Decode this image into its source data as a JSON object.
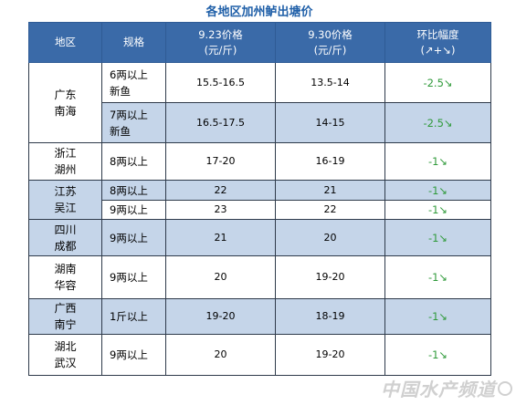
{
  "title": "各地区加州鲈出塘价",
  "headers": {
    "region": "地区",
    "spec": "规格",
    "price1_line1": "9.23价格",
    "price1_line2": "(元/斤)",
    "price2_line1": "9.30价格",
    "price2_line2": "(元/斤)",
    "change_line1": "环比幅度",
    "change_line2": "(↗+↘)"
  },
  "regions": [
    {
      "name": "广东\n南海",
      "rows": [
        {
          "spec": "6两以上\n新鱼",
          "p1": "15.5-16.5",
          "p2": "13.5-14",
          "change": "-2.5↘"
        },
        {
          "spec": "7两以上\n新鱼",
          "p1": "16.5-17.5",
          "p2": "14-15",
          "change": "-2.5↘"
        }
      ]
    },
    {
      "name": "浙江\n湖州",
      "rows": [
        {
          "spec": "8两以上",
          "p1": "17-20",
          "p2": "16-19",
          "change": "-1↘"
        }
      ]
    },
    {
      "name": "江苏\n吴江",
      "rows": [
        {
          "spec": "8两以上",
          "p1": "22",
          "p2": "21",
          "change": "-1↘"
        },
        {
          "spec": "9两以上",
          "p1": "23",
          "p2": "22",
          "change": "-1↘"
        }
      ]
    },
    {
      "name": "四川\n成都",
      "rows": [
        {
          "spec": "9两以上",
          "p1": "21",
          "p2": "20",
          "change": "-1↘"
        }
      ]
    },
    {
      "name": "湖南\n华容",
      "rows": [
        {
          "spec": "9两以上",
          "p1": "20",
          "p2": "19-20",
          "change": "-1↘"
        }
      ]
    },
    {
      "name": "广西\n南宁",
      "rows": [
        {
          "spec": "1斤以上",
          "p1": "19-20",
          "p2": "18-19",
          "change": "-1↘"
        }
      ]
    },
    {
      "name": "湖北\n武汉",
      "rows": [
        {
          "spec": "9两以上",
          "p1": "20",
          "p2": "19-20",
          "change": "-1↘"
        }
      ]
    }
  ],
  "watermark": "中国水产频道"
}
